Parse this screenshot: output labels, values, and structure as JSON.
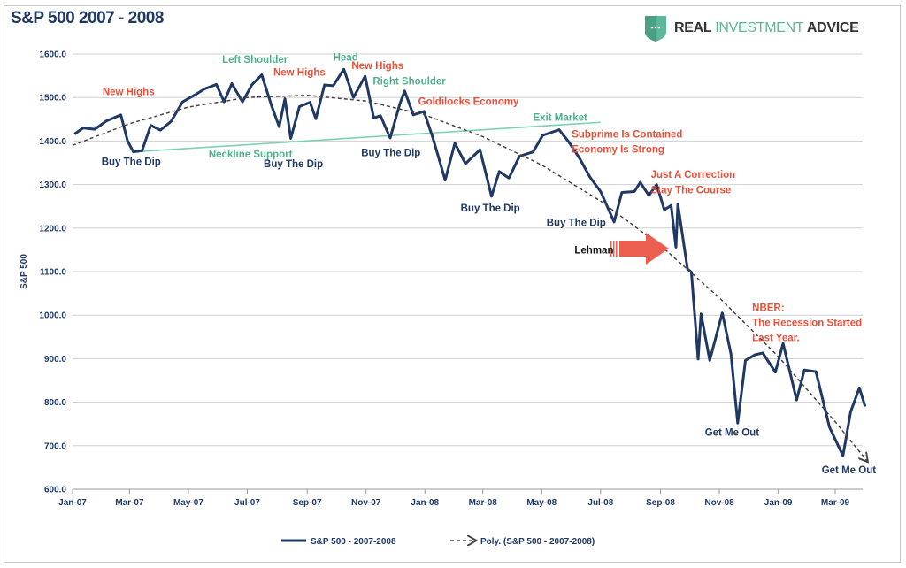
{
  "title": "S&P 500 2007 - 2008",
  "logo": {
    "part1": "REAL ",
    "part2": "INVESTMENT",
    "part3": " ADVICE"
  },
  "colors": {
    "series": "#1f3864",
    "trend": "#444444",
    "neckline": "#7fcfb3",
    "red": "#e8503a",
    "teal": "#4fb08f",
    "dark": "#1f3864",
    "arrow": "#ec5f4f"
  },
  "chart_data": {
    "type": "line",
    "title": "S&P 500 2007 - 2008",
    "ylabel": "S&P 500",
    "xlabel": "",
    "ylim": [
      600,
      1600
    ],
    "yticks": [
      "600.0",
      "700.0",
      "800.0",
      "900.0",
      "1000.0",
      "1100.0",
      "1200.0",
      "1300.0",
      "1400.0",
      "1500.0",
      "1600.0"
    ],
    "xticks": [
      [
        "2007-01-01",
        "Jan-07"
      ],
      [
        "2007-03-01",
        "Mar-07"
      ],
      [
        "2007-05-01",
        "May-07"
      ],
      [
        "2007-07-01",
        "Jul-07"
      ],
      [
        "2007-09-01",
        "Sep-07"
      ],
      [
        "2007-11-01",
        "Nov-07"
      ],
      [
        "2008-01-01",
        "Jan-08"
      ],
      [
        "2008-03-01",
        "Mar-08"
      ],
      [
        "2008-05-01",
        "May-08"
      ],
      [
        "2008-07-01",
        "Jul-08"
      ],
      [
        "2008-09-01",
        "Sep-08"
      ],
      [
        "2008-11-01",
        "Nov-08"
      ],
      [
        "2009-01-01",
        "Jan-09"
      ],
      [
        "2009-03-01",
        "Mar-09"
      ]
    ],
    "grid": true,
    "legend_position": "bottom",
    "series": [
      {
        "name": "S&P 500 - 2007-2008",
        "style": "solid",
        "points": [
          [
            "2007-01-03",
            1416
          ],
          [
            "2007-01-12",
            1430
          ],
          [
            "2007-01-24",
            1427
          ],
          [
            "2007-02-05",
            1446
          ],
          [
            "2007-02-20",
            1460
          ],
          [
            "2007-02-27",
            1400
          ],
          [
            "2007-03-05",
            1375
          ],
          [
            "2007-03-14",
            1378
          ],
          [
            "2007-03-23",
            1436
          ],
          [
            "2007-04-02",
            1425
          ],
          [
            "2007-04-13",
            1445
          ],
          [
            "2007-04-25",
            1490
          ],
          [
            "2007-05-07",
            1505
          ],
          [
            "2007-05-18",
            1520
          ],
          [
            "2007-05-30",
            1530
          ],
          [
            "2007-06-07",
            1490
          ],
          [
            "2007-06-15",
            1532
          ],
          [
            "2007-06-26",
            1490
          ],
          [
            "2007-07-06",
            1530
          ],
          [
            "2007-07-16",
            1552
          ],
          [
            "2007-07-26",
            1482
          ],
          [
            "2007-08-03",
            1433
          ],
          [
            "2007-08-09",
            1497
          ],
          [
            "2007-08-15",
            1406
          ],
          [
            "2007-08-24",
            1479
          ],
          [
            "2007-09-04",
            1489
          ],
          [
            "2007-09-10",
            1451
          ],
          [
            "2007-09-19",
            1529
          ],
          [
            "2007-09-28",
            1527
          ],
          [
            "2007-10-09",
            1565
          ],
          [
            "2007-10-19",
            1500
          ],
          [
            "2007-10-31",
            1549
          ],
          [
            "2007-11-09",
            1453
          ],
          [
            "2007-11-16",
            1458
          ],
          [
            "2007-11-26",
            1407
          ],
          [
            "2007-12-06",
            1485
          ],
          [
            "2007-12-11",
            1515
          ],
          [
            "2007-12-20",
            1460
          ],
          [
            "2007-12-31",
            1468
          ],
          [
            "2008-01-09",
            1409
          ],
          [
            "2008-01-22",
            1310
          ],
          [
            "2008-02-01",
            1395
          ],
          [
            "2008-02-12",
            1348
          ],
          [
            "2008-02-27",
            1380
          ],
          [
            "2008-03-10",
            1273
          ],
          [
            "2008-03-18",
            1330
          ],
          [
            "2008-03-28",
            1315
          ],
          [
            "2008-04-08",
            1365
          ],
          [
            "2008-04-22",
            1375
          ],
          [
            "2008-05-02",
            1413
          ],
          [
            "2008-05-19",
            1426
          ],
          [
            "2008-05-29",
            1398
          ],
          [
            "2008-06-09",
            1361
          ],
          [
            "2008-06-20",
            1317
          ],
          [
            "2008-07-01",
            1284
          ],
          [
            "2008-07-15",
            1214
          ],
          [
            "2008-07-23",
            1282
          ],
          [
            "2008-08-05",
            1284
          ],
          [
            "2008-08-11",
            1305
          ],
          [
            "2008-08-20",
            1275
          ],
          [
            "2008-08-28",
            1300
          ],
          [
            "2008-09-05",
            1242
          ],
          [
            "2008-09-12",
            1252
          ],
          [
            "2008-09-17",
            1156
          ],
          [
            "2008-09-19",
            1255
          ],
          [
            "2008-09-29",
            1106
          ],
          [
            "2008-10-03",
            1099
          ],
          [
            "2008-10-10",
            899
          ],
          [
            "2008-10-13",
            1003
          ],
          [
            "2008-10-22",
            896
          ],
          [
            "2008-11-04",
            1005
          ],
          [
            "2008-11-13",
            911
          ],
          [
            "2008-11-20",
            752
          ],
          [
            "2008-11-28",
            896
          ],
          [
            "2008-12-08",
            909
          ],
          [
            "2008-12-16",
            913
          ],
          [
            "2008-12-29",
            869
          ],
          [
            "2009-01-06",
            935
          ],
          [
            "2009-01-20",
            805
          ],
          [
            "2009-01-28",
            874
          ],
          [
            "2009-02-09",
            870
          ],
          [
            "2009-02-23",
            743
          ],
          [
            "2009-03-09",
            677
          ],
          [
            "2009-03-17",
            778
          ],
          [
            "2009-03-26",
            833
          ],
          [
            "2009-04-01",
            790
          ]
        ]
      },
      {
        "name": "Poly. (S&P 500 - 2007-2008)",
        "style": "dashed",
        "points": [
          [
            "2007-01-01",
            1390
          ],
          [
            "2007-03-01",
            1440
          ],
          [
            "2007-05-01",
            1478
          ],
          [
            "2007-07-01",
            1500
          ],
          [
            "2007-09-01",
            1505
          ],
          [
            "2007-11-01",
            1492
          ],
          [
            "2008-01-01",
            1460
          ],
          [
            "2008-03-01",
            1410
          ],
          [
            "2008-05-01",
            1345
          ],
          [
            "2008-07-01",
            1262
          ],
          [
            "2008-09-01",
            1160
          ],
          [
            "2008-11-01",
            1040
          ],
          [
            "2009-01-01",
            905
          ],
          [
            "2009-03-01",
            755
          ],
          [
            "2009-04-03",
            665
          ]
        ]
      }
    ],
    "neckline": {
      "label": "Neckline Support",
      "from": [
        "2007-03-05",
        1375
      ],
      "to": [
        "2008-07-01",
        1443
      ]
    },
    "annotations": [
      {
        "text": "New Highs",
        "date": "2007-02-01",
        "value": 1505,
        "color": "red"
      },
      {
        "text": "Buy The Dip",
        "date": "2007-01-31",
        "value": 1345,
        "color": "dark"
      },
      {
        "text": "Left Shoulder",
        "date": "2007-06-05",
        "value": 1580,
        "color": "teal"
      },
      {
        "text": "New Highs",
        "date": "2007-07-28",
        "value": 1550,
        "color": "red"
      },
      {
        "text": "Head",
        "date": "2007-09-28",
        "value": 1585,
        "color": "teal"
      },
      {
        "text": "New Highs",
        "date": "2007-10-17",
        "value": 1565,
        "color": "red"
      },
      {
        "text": "Right Shoulder",
        "date": "2007-11-08",
        "value": 1530,
        "color": "teal"
      },
      {
        "text": "Goldilocks Economy",
        "date": "2007-12-25",
        "value": 1483,
        "color": "red"
      },
      {
        "text": "Neckline Support",
        "date": "2007-05-22",
        "value": 1362,
        "color": "teal"
      },
      {
        "text": "Buy The Dip",
        "date": "2007-07-18",
        "value": 1340,
        "color": "dark"
      },
      {
        "text": "Buy The Dip",
        "date": "2007-10-27",
        "value": 1365,
        "color": "dark"
      },
      {
        "text": "Exit Market",
        "date": "2008-04-22",
        "value": 1447,
        "color": "teal"
      },
      {
        "text": "Subprime Is Contained",
        "date": "2008-06-01",
        "value": 1408,
        "color": "red"
      },
      {
        "text": "Economy Is Strong",
        "date": "2008-06-01",
        "value": 1373,
        "color": "red"
      },
      {
        "text": "Buy The Dip",
        "date": "2008-02-07",
        "value": 1238,
        "color": "dark"
      },
      {
        "text": "Buy The Dip",
        "date": "2008-05-06",
        "value": 1205,
        "color": "dark"
      },
      {
        "text": "Just A Correction",
        "date": "2008-08-22",
        "value": 1315,
        "color": "red"
      },
      {
        "text": "Stay The Course",
        "date": "2008-08-22",
        "value": 1280,
        "color": "red"
      },
      {
        "text": "Lehman",
        "date": "2008-06-04",
        "value": 1142,
        "color": "black"
      },
      {
        "text": "NBER:",
        "date": "2008-12-05",
        "value": 1010,
        "color": "red"
      },
      {
        "text": "The Recession Started",
        "date": "2008-12-05",
        "value": 975,
        "color": "red"
      },
      {
        "text": "Last Year.",
        "date": "2008-12-05",
        "value": 940,
        "color": "red"
      },
      {
        "text": "Get Me Out",
        "date": "2008-10-17",
        "value": 723,
        "color": "dark"
      },
      {
        "text": "Get Me Out",
        "date": "2009-02-15",
        "value": 637,
        "color": "dark"
      }
    ]
  }
}
